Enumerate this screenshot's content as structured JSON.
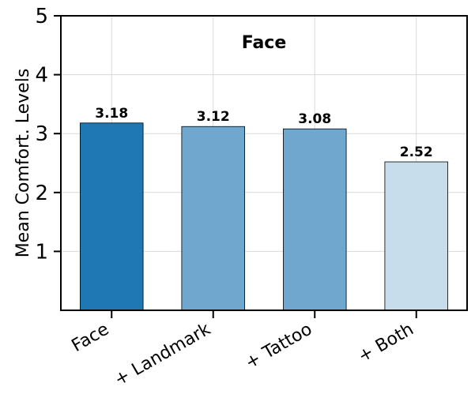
{
  "chart_data": {
    "type": "bar",
    "title": "Face",
    "xlabel": "",
    "ylabel": "Mean Comfort. Levels",
    "categories": [
      "Face",
      "+ Landmark",
      "+ Tattoo",
      "+ Both"
    ],
    "values": [
      3.18,
      3.12,
      3.08,
      2.52
    ],
    "data_labels": [
      "3.18",
      "3.12",
      "3.08",
      "2.52"
    ],
    "bar_colors": [
      "#1f77b4",
      "#6fa7cf",
      "#6fa7cf",
      "#c8ddeb"
    ],
    "ylim": [
      0,
      5
    ],
    "yticks": [
      1,
      2,
      3,
      4,
      5
    ],
    "grid": true
  }
}
